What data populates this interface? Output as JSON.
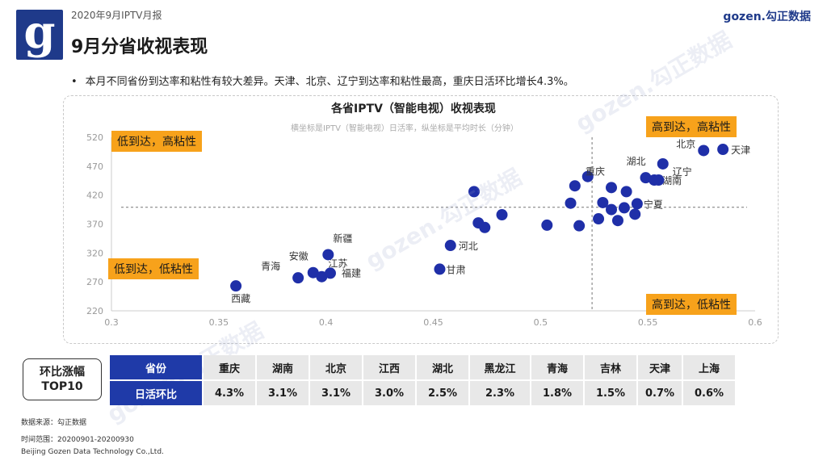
{
  "header": {
    "report_label": "2020年9月IPTV月报",
    "title": "9月分省收视表现",
    "brand": "gozen.勾正数据",
    "logo_letter": "g"
  },
  "summary": "本月不同省份到达率和粘性有较大差异。天津、北京、辽宁到达率和粘性最高，重庆日活环比增长4.3%。",
  "chart_data": {
    "type": "scatter",
    "title": "各省IPTV（智能电视）收视表现",
    "subtitle": "横坐标是IPTV（智能电视）日活率，纵坐标是平均时长（分钟）",
    "xlim": [
      0.3,
      0.6
    ],
    "ylim": [
      220,
      520
    ],
    "x_ticks": [
      "0.3",
      "0.35",
      "0.4",
      "0.45",
      "0.5",
      "0.55",
      "0.6"
    ],
    "y_ticks": [
      "520",
      "470",
      "420",
      "370",
      "320",
      "270",
      "220"
    ],
    "ref_x": 0.524,
    "ref_y": 399,
    "point_color": "#1f2fa8",
    "points": [
      {
        "x": 0.358,
        "y": 263,
        "label": "西藏"
      },
      {
        "x": 0.387,
        "y": 277,
        "label": "青海"
      },
      {
        "x": 0.394,
        "y": 286,
        "label": "安徽"
      },
      {
        "x": 0.398,
        "y": 279,
        "label": "江苏"
      },
      {
        "x": 0.401,
        "y": 317,
        "label": "新疆"
      },
      {
        "x": 0.402,
        "y": 285,
        "label": "福建"
      },
      {
        "x": 0.453,
        "y": 292,
        "label": "甘肃"
      },
      {
        "x": 0.458,
        "y": 333,
        "label": "河北"
      },
      {
        "x": 0.469,
        "y": 426,
        "label": ""
      },
      {
        "x": 0.471,
        "y": 372,
        "label": ""
      },
      {
        "x": 0.474,
        "y": 364,
        "label": ""
      },
      {
        "x": 0.482,
        "y": 386,
        "label": ""
      },
      {
        "x": 0.503,
        "y": 368,
        "label": ""
      },
      {
        "x": 0.514,
        "y": 406,
        "label": ""
      },
      {
        "x": 0.516,
        "y": 436,
        "label": ""
      },
      {
        "x": 0.518,
        "y": 367,
        "label": ""
      },
      {
        "x": 0.522,
        "y": 452,
        "label": ""
      },
      {
        "x": 0.527,
        "y": 379,
        "label": ""
      },
      {
        "x": 0.529,
        "y": 407,
        "label": ""
      },
      {
        "x": 0.533,
        "y": 433,
        "label": "重庆"
      },
      {
        "x": 0.533,
        "y": 395,
        "label": ""
      },
      {
        "x": 0.536,
        "y": 376,
        "label": ""
      },
      {
        "x": 0.539,
        "y": 398,
        "label": ""
      },
      {
        "x": 0.54,
        "y": 426,
        "label": ""
      },
      {
        "x": 0.544,
        "y": 387,
        "label": ""
      },
      {
        "x": 0.545,
        "y": 405,
        "label": "宁夏"
      },
      {
        "x": 0.549,
        "y": 450,
        "label": "湖北"
      },
      {
        "x": 0.553,
        "y": 446,
        "label": "湖南"
      },
      {
        "x": 0.555,
        "y": 446,
        "label": ""
      },
      {
        "x": 0.557,
        "y": 474,
        "label": "辽宁"
      },
      {
        "x": 0.576,
        "y": 497,
        "label": "北京"
      },
      {
        "x": 0.585,
        "y": 499,
        "label": "天津"
      }
    ],
    "quadrants": {
      "top_left": "低到达，高粘性",
      "top_right": "高到达，高粘性",
      "bottom_left": "低到达，低粘性",
      "bottom_right": "高到达，低粘性"
    }
  },
  "top10": {
    "box_line1": "环比涨幅",
    "box_line2": "TOP10",
    "row1_label": "省份",
    "row2_label": "日活环比",
    "provinces": [
      "重庆",
      "湖南",
      "北京",
      "江西",
      "湖北",
      "黑龙江",
      "青海",
      "吉林",
      "天津",
      "上海"
    ],
    "values": [
      "4.3%",
      "3.1%",
      "3.1%",
      "3.0%",
      "2.5%",
      "2.3%",
      "1.8%",
      "1.5%",
      "0.7%",
      "0.6%"
    ],
    "header_color": "#1f3aa8"
  },
  "footer": {
    "source": "数据来源：勾正数据",
    "period": "时间范围：20200901-20200930",
    "company": "Beijing Gozen Data Technology Co.,Ltd."
  },
  "watermark_text": "gozen.勾正数据"
}
